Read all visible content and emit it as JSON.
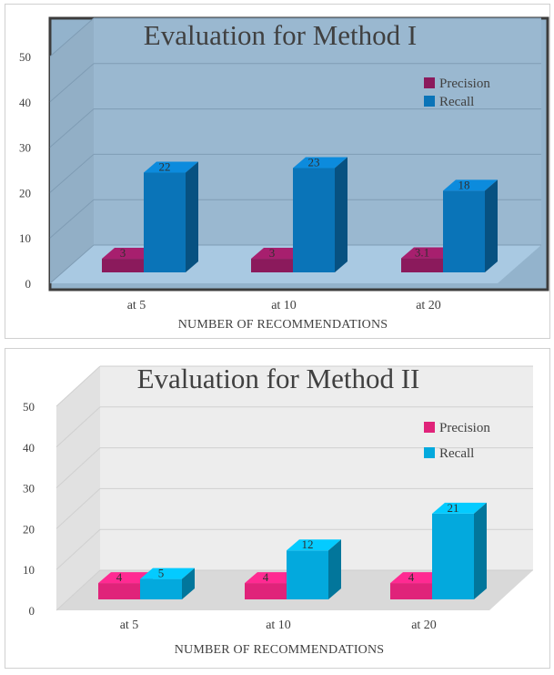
{
  "chart_data": [
    {
      "type": "bar",
      "title": "Evaluation for Method I",
      "xlabel": "NUMBER OF RECOMMENDATIONS",
      "ylabel": "",
      "categories": [
        "at 5",
        "at 10",
        "at 20"
      ],
      "series": [
        {
          "name": "Precision",
          "values": [
            3,
            3,
            3.1
          ],
          "labels": [
            "3",
            "3",
            "3.1"
          ]
        },
        {
          "name": "Recall",
          "values": [
            22,
            23,
            18
          ],
          "labels": [
            "22",
            "23",
            "18"
          ]
        }
      ],
      "ylim": [
        0,
        50
      ],
      "yticks": [
        "0",
        "10",
        "20",
        "30",
        "40",
        "50"
      ],
      "legend": "top-right",
      "grid": true,
      "colors": {
        "Precision": "#8b1a5c",
        "Recall": "#0a74b8",
        "plot_background": "#93b3cc"
      }
    },
    {
      "type": "bar",
      "title": "Evaluation for Method II",
      "xlabel": "NUMBER OF RECOMMENDATIONS",
      "ylabel": "",
      "categories": [
        "at 5",
        "at 10",
        "at 20"
      ],
      "series": [
        {
          "name": "Precision",
          "values": [
            4,
            4,
            4
          ],
          "labels": [
            "4",
            "4",
            "4"
          ]
        },
        {
          "name": "Recall",
          "values": [
            5,
            12,
            21
          ],
          "labels": [
            "5",
            "12",
            "21"
          ]
        }
      ],
      "ylim": [
        0,
        50
      ],
      "yticks": [
        "0",
        "10",
        "20",
        "30",
        "40",
        "50"
      ],
      "legend": "top-right",
      "grid": true,
      "colors": {
        "Precision": "#e0237a",
        "Recall": "#03a9dd",
        "plot_background": "#f0f0f0"
      }
    }
  ]
}
